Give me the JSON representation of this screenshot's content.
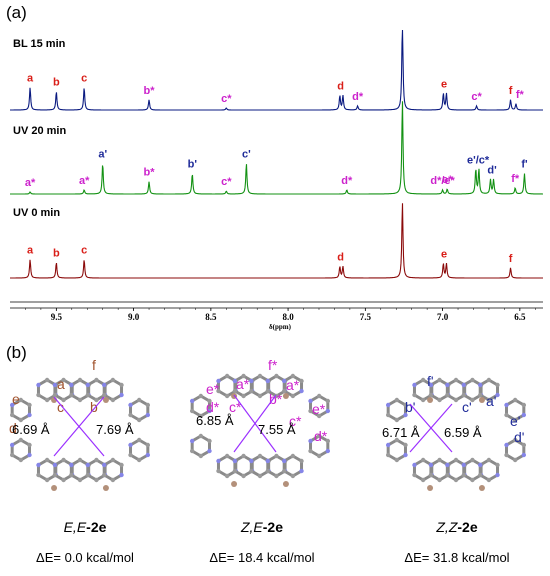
{
  "panels": {
    "a": "(a)",
    "b": "(b)"
  },
  "colors": {
    "red": "#d91e18",
    "magenta": "#cc22cc",
    "blue": "#1f2b99",
    "green": "#1a9a1a",
    "traceBlue": "#0a1a80",
    "traceGreen": "#139113",
    "traceRed": "#8b0a0a",
    "violet": "#9b30ff",
    "atomBlue": "#8585e8",
    "atomBrown": "#b3907a",
    "bond": "#8a8a8a"
  },
  "chart_data": {
    "type": "line",
    "title": "",
    "xlabel": "δ(ppm)",
    "ylabel": "",
    "xlim": [
      9.8,
      6.35
    ],
    "x_reversed": true,
    "grid": false,
    "xticks": [
      "9.5",
      "9.0",
      "8.5",
      "8.0",
      "7.5",
      "7.0",
      "6.5"
    ],
    "series": [
      {
        "name": "BL 15 min",
        "color": "traceBlue",
        "peaks": [
          {
            "ppm": 9.67,
            "h": 0.55
          },
          {
            "ppm": 9.5,
            "h": 0.45
          },
          {
            "ppm": 9.32,
            "h": 0.55
          },
          {
            "ppm": 8.9,
            "h": 0.25
          },
          {
            "ppm": 8.4,
            "h": 0.05
          },
          {
            "ppm": 7.665,
            "h": 0.35
          },
          {
            "ppm": 7.645,
            "h": 0.35
          },
          {
            "ppm": 7.55,
            "h": 0.1
          },
          {
            "ppm": 7.26,
            "h": 2.2
          },
          {
            "ppm": 6.995,
            "h": 0.4
          },
          {
            "ppm": 6.975,
            "h": 0.4
          },
          {
            "ppm": 6.78,
            "h": 0.1
          },
          {
            "ppm": 6.56,
            "h": 0.25
          },
          {
            "ppm": 6.525,
            "h": 0.15
          }
        ],
        "labels": [
          {
            "text": "a",
            "ppm": 9.67,
            "color": "red"
          },
          {
            "text": "b",
            "ppm": 9.5,
            "color": "red"
          },
          {
            "text": "c",
            "ppm": 9.32,
            "color": "red"
          },
          {
            "text": "b*",
            "ppm": 8.9,
            "color": "magenta"
          },
          {
            "text": "c*",
            "ppm": 8.4,
            "color": "magenta"
          },
          {
            "text": "d",
            "ppm": 7.66,
            "color": "red"
          },
          {
            "text": "d*",
            "ppm": 7.55,
            "color": "magenta"
          },
          {
            "text": "e",
            "ppm": 6.99,
            "color": "red"
          },
          {
            "text": "c*",
            "ppm": 6.78,
            "color": "magenta"
          },
          {
            "text": "f",
            "ppm": 6.56,
            "color": "red"
          },
          {
            "text": "f*",
            "ppm": 6.5,
            "color": "magenta"
          }
        ]
      },
      {
        "name": "UV 20 min",
        "color": "traceGreen",
        "peaks": [
          {
            "ppm": 9.67,
            "h": 0.05
          },
          {
            "ppm": 9.32,
            "h": 0.1
          },
          {
            "ppm": 9.2,
            "h": 0.75
          },
          {
            "ppm": 8.9,
            "h": 0.3
          },
          {
            "ppm": 8.62,
            "h": 0.5
          },
          {
            "ppm": 8.4,
            "h": 0.07
          },
          {
            "ppm": 8.27,
            "h": 0.75
          },
          {
            "ppm": 7.62,
            "h": 0.1
          },
          {
            "ppm": 7.26,
            "h": 2.3
          },
          {
            "ppm": 7.0,
            "h": 0.1
          },
          {
            "ppm": 6.97,
            "h": 0.12
          },
          {
            "ppm": 6.785,
            "h": 0.6
          },
          {
            "ppm": 6.765,
            "h": 0.6
          },
          {
            "ppm": 6.69,
            "h": 0.35
          },
          {
            "ppm": 6.67,
            "h": 0.35
          },
          {
            "ppm": 6.53,
            "h": 0.15
          },
          {
            "ppm": 6.47,
            "h": 0.5
          }
        ],
        "labels": [
          {
            "text": "a*",
            "ppm": 9.67,
            "color": "magenta"
          },
          {
            "text": "a*",
            "ppm": 9.32,
            "color": "magenta"
          },
          {
            "text": "a'",
            "ppm": 9.2,
            "color": "blue"
          },
          {
            "text": "b*",
            "ppm": 8.9,
            "color": "magenta"
          },
          {
            "text": "b'",
            "ppm": 8.62,
            "color": "blue"
          },
          {
            "text": "c*",
            "ppm": 8.4,
            "color": "magenta"
          },
          {
            "text": "c'",
            "ppm": 8.27,
            "color": "blue"
          },
          {
            "text": "d*",
            "ppm": 7.62,
            "color": "magenta"
          },
          {
            "text": "d*/e*",
            "ppm": 7.0,
            "color": "magenta"
          },
          {
            "text": "e*",
            "ppm": 6.97,
            "color": "magenta"
          },
          {
            "text": "e'/c*",
            "ppm": 6.77,
            "color": "blue"
          },
          {
            "text": "d'",
            "ppm": 6.68,
            "color": "blue"
          },
          {
            "text": "f*",
            "ppm": 6.53,
            "color": "magenta"
          },
          {
            "text": "f'",
            "ppm": 6.47,
            "color": "blue"
          }
        ]
      },
      {
        "name": "UV 0 min",
        "color": "traceRed",
        "peaks": [
          {
            "ppm": 9.67,
            "h": 0.45
          },
          {
            "ppm": 9.5,
            "h": 0.38
          },
          {
            "ppm": 9.32,
            "h": 0.45
          },
          {
            "ppm": 7.665,
            "h": 0.28
          },
          {
            "ppm": 7.645,
            "h": 0.28
          },
          {
            "ppm": 7.26,
            "h": 1.85
          },
          {
            "ppm": 6.995,
            "h": 0.35
          },
          {
            "ppm": 6.975,
            "h": 0.35
          },
          {
            "ppm": 6.56,
            "h": 0.25
          }
        ],
        "labels": [
          {
            "text": "a",
            "ppm": 9.67,
            "color": "red"
          },
          {
            "text": "b",
            "ppm": 9.5,
            "color": "red"
          },
          {
            "text": "c",
            "ppm": 9.32,
            "color": "red"
          },
          {
            "text": "d",
            "ppm": 7.66,
            "color": "red"
          },
          {
            "text": "e",
            "ppm": 6.99,
            "color": "red"
          },
          {
            "text": "f",
            "ppm": 6.56,
            "color": "red"
          }
        ]
      }
    ]
  },
  "molecules": [
    {
      "name_prefix": "E,E",
      "name_suffix": "-2e",
      "energy": "ΔE= 0.0 kcal/mol",
      "distances": [
        "6.69 Å",
        "7.69 Å"
      ],
      "labels": [
        {
          "text": "a",
          "color": "brown"
        },
        {
          "text": "f",
          "color": "brown"
        },
        {
          "text": "e",
          "color": "brown"
        },
        {
          "text": "d",
          "color": "brown"
        },
        {
          "text": "c",
          "color": "brown"
        },
        {
          "text": "b",
          "color": "brown"
        }
      ]
    },
    {
      "name_prefix": "Z,E",
      "name_suffix": "-2e",
      "energy": "ΔE= 18.4 kcal/mol",
      "distances": [
        "6.85 Å",
        "7.55 Å"
      ],
      "labels": [
        {
          "text": "a*",
          "color": "magenta"
        },
        {
          "text": "f*",
          "color": "magenta"
        },
        {
          "text": "e*",
          "color": "magenta"
        },
        {
          "text": "d*",
          "color": "magenta"
        },
        {
          "text": "c*",
          "color": "magenta"
        },
        {
          "text": "b*",
          "color": "magenta"
        },
        {
          "text": "a*",
          "color": "magenta"
        },
        {
          "text": "e*",
          "color": "magenta"
        },
        {
          "text": "c*",
          "color": "magenta"
        },
        {
          "text": "d*",
          "color": "magenta"
        }
      ]
    },
    {
      "name_prefix": "Z,Z",
      "name_suffix": "-2e",
      "energy": "ΔE= 31.8 kcal/mol",
      "distances": [
        "6.71 Å",
        "6.59 Å"
      ],
      "labels": [
        {
          "text": "f'",
          "color": "blue"
        },
        {
          "text": "a'",
          "color": "blue"
        },
        {
          "text": "b'",
          "color": "blue"
        },
        {
          "text": "c'",
          "color": "blue"
        },
        {
          "text": "e'",
          "color": "blue"
        },
        {
          "text": "d'",
          "color": "blue"
        }
      ]
    }
  ]
}
